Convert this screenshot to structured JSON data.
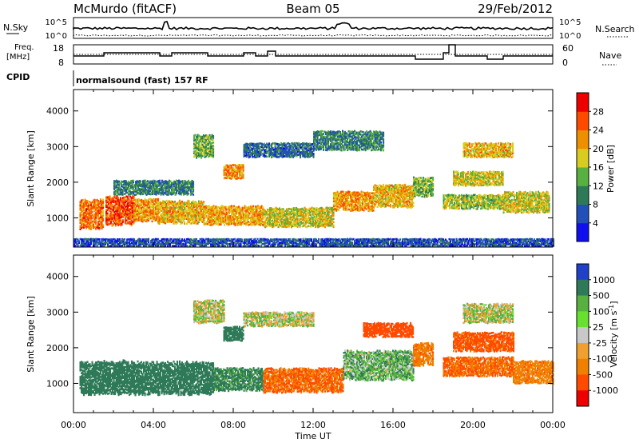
{
  "header": {
    "station": "McMurdo (fitACF)",
    "beam": "Beam 05",
    "date": "29/Feb/2012"
  },
  "aux_panels": {
    "nsky_label": "N.Sky",
    "nsearch_label": "N.Search",
    "sky_tick_top": "10^5",
    "sky_tick_bottom": "10^0",
    "search_tick_top": "10^5",
    "search_tick_bottom": "10^0",
    "freq_label_1": "Freq.",
    "freq_label_2": "[MHz]",
    "freq_tick_top": "18",
    "freq_tick_bottom": "8",
    "nave_label": "Nave",
    "nave_tick_top": "60",
    "nave_tick_bottom": "0",
    "cpid_label": "CPID",
    "cpid_value": "normalsound (fast) 157 RF"
  },
  "chart_data": [
    {
      "type": "heatmap",
      "panel": "power",
      "ylabel": "Slant Range [km]",
      "xlabel": "",
      "xlim": [
        "00:00",
        "24:00"
      ],
      "ylim": [
        180,
        4600
      ],
      "yticks": [
        1000,
        2000,
        3000,
        4000
      ],
      "x_tick_labels": [
        "00:00",
        "04:00",
        "08:00",
        "12:00",
        "16:00",
        "20:00",
        "00:00"
      ],
      "colorbar": {
        "label": "Power [dB]",
        "range": [
          0,
          32
        ],
        "ticks": [
          4,
          8,
          12,
          16,
          20,
          24,
          28
        ],
        "colors": [
          "#1010ee",
          "#2050b8",
          "#2e7a58",
          "#58b040",
          "#d8cc20",
          "#ee8f00",
          "#ff4a00",
          "#ee0000"
        ]
      },
      "regions": [
        {
          "t": [
            0.3,
            1.5
          ],
          "r": [
            700,
            1500
          ],
          "p": 24
        },
        {
          "t": [
            1.6,
            3.0
          ],
          "r": [
            800,
            1600
          ],
          "p": 26
        },
        {
          "t": [
            3.0,
            4.2
          ],
          "r": [
            900,
            1500
          ],
          "p": 22
        },
        {
          "t": [
            4.2,
            6.5
          ],
          "r": [
            850,
            1450
          ],
          "p": 20
        },
        {
          "t": [
            6.5,
            9.5
          ],
          "r": [
            800,
            1300
          ],
          "p": 21
        },
        {
          "t": [
            9.5,
            13.0
          ],
          "r": [
            750,
            1250
          ],
          "p": 18
        },
        {
          "t": [
            13.0,
            15.0
          ],
          "r": [
            1200,
            1700
          ],
          "p": 22
        },
        {
          "t": [
            15.0,
            17.0
          ],
          "r": [
            1300,
            1900
          ],
          "p": 20
        },
        {
          "t": [
            17.0,
            18.0
          ],
          "r": [
            1600,
            2100
          ],
          "p": 14
        },
        {
          "t": [
            18.5,
            21.5
          ],
          "r": [
            1250,
            1650
          ],
          "p": 16
        },
        {
          "t": [
            21.5,
            23.8
          ],
          "r": [
            1150,
            1700
          ],
          "p": 18
        },
        {
          "t": [
            2.0,
            6.0
          ],
          "r": [
            1650,
            2050
          ],
          "p": 10
        },
        {
          "t": [
            6.0,
            7.0
          ],
          "r": [
            2700,
            3300
          ],
          "p": 14
        },
        {
          "t": [
            7.5,
            8.5
          ],
          "r": [
            2100,
            2500
          ],
          "p": 22
        },
        {
          "t": [
            8.5,
            12.0
          ],
          "r": [
            2700,
            3100
          ],
          "p": 8
        },
        {
          "t": [
            12.0,
            15.5
          ],
          "r": [
            2900,
            3400
          ],
          "p": 10
        },
        {
          "t": [
            19.5,
            22.0
          ],
          "r": [
            2700,
            3100
          ],
          "p": 20
        },
        {
          "t": [
            19.0,
            21.5
          ],
          "r": [
            1900,
            2300
          ],
          "p": 18
        },
        {
          "t": [
            0.0,
            24.0
          ],
          "r": [
            200,
            400
          ],
          "p": 6
        }
      ]
    },
    {
      "type": "heatmap",
      "panel": "velocity",
      "ylabel": "Slant Range [km]",
      "xlabel": "Time UT",
      "xlim": [
        "00:00",
        "24:00"
      ],
      "ylim": [
        180,
        4600
      ],
      "yticks": [
        1000,
        2000,
        3000,
        4000
      ],
      "x_tick_labels": [
        "00:00",
        "04:00",
        "08:00",
        "12:00",
        "16:00",
        "20:00",
        "00:00"
      ],
      "colorbar": {
        "label": "Velocity [m s^-1]",
        "tick_labels": [
          "1000",
          "500",
          "100",
          "25",
          "-25",
          "-100",
          "-500",
          "-1000"
        ],
        "colors": [
          "#2040c8",
          "#2e7a58",
          "#58b040",
          "#68e030",
          "#c8c8c8",
          "#f0a030",
          "#f08000",
          "#ff4a00",
          "#ee0000"
        ]
      },
      "regions": [
        {
          "t": [
            0.3,
            7.0
          ],
          "r": [
            700,
            1600
          ],
          "v": 250
        },
        {
          "t": [
            7.0,
            9.5
          ],
          "r": [
            800,
            1400
          ],
          "v": 150
        },
        {
          "t": [
            9.5,
            13.5
          ],
          "r": [
            750,
            1400
          ],
          "v": -250
        },
        {
          "t": [
            13.5,
            17.0
          ],
          "r": [
            1100,
            1900
          ],
          "v": 60
        },
        {
          "t": [
            17.0,
            18.0
          ],
          "r": [
            1500,
            2100
          ],
          "v": -200
        },
        {
          "t": [
            18.5,
            22.0
          ],
          "r": [
            1200,
            1700
          ],
          "v": -250
        },
        {
          "t": [
            22.0,
            24.0
          ],
          "r": [
            1000,
            1600
          ],
          "v": -180
        },
        {
          "t": [
            19.0,
            22.0
          ],
          "r": [
            1900,
            2400
          ],
          "v": -300
        },
        {
          "t": [
            19.5,
            22.0
          ],
          "r": [
            2700,
            3200
          ],
          "v": 0
        },
        {
          "t": [
            6.0,
            7.5
          ],
          "r": [
            2700,
            3300
          ],
          "v": 0
        },
        {
          "t": [
            7.5,
            8.5
          ],
          "r": [
            2200,
            2600
          ],
          "v": 250
        },
        {
          "t": [
            8.5,
            12.0
          ],
          "r": [
            2600,
            3000
          ],
          "v": 0
        },
        {
          "t": [
            14.5,
            17.0
          ],
          "r": [
            2300,
            2700
          ],
          "v": -400
        }
      ]
    }
  ]
}
